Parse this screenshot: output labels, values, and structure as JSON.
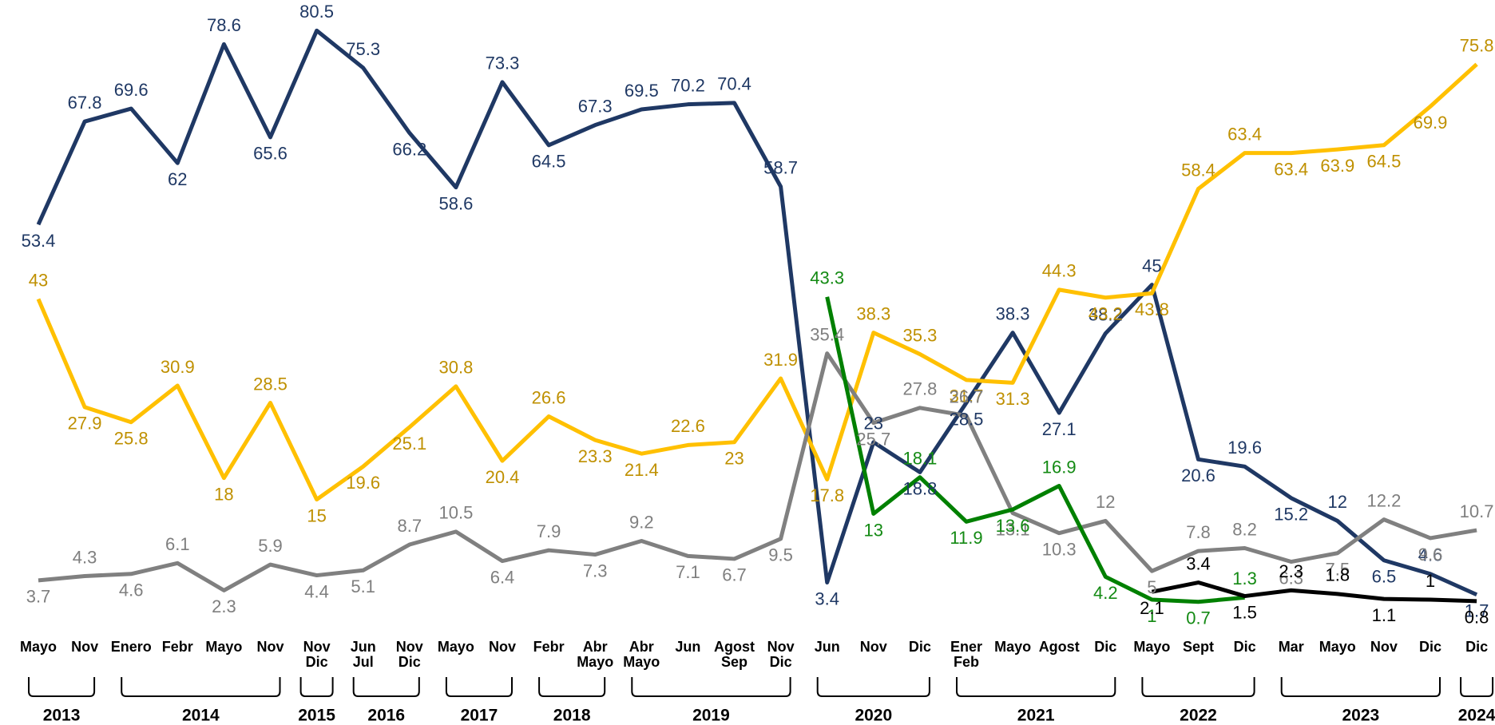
{
  "chart_data": {
    "type": "line",
    "categories": [
      "Mayo",
      "Nov",
      "Enero",
      "Febr",
      "Mayo",
      "Nov",
      "Nov\nDic",
      "Jun\nJul",
      "Nov\nDic",
      "Mayo",
      "Nov",
      "Febr",
      "Abr\nMayo",
      "Abr\nMayo",
      "Jun",
      "Agost\nSep",
      "Nov\nDic",
      "Jun",
      "Nov",
      "Dic",
      "Ener\nFeb",
      "Mayo",
      "Agost",
      "Dic",
      "Mayo",
      "Sept",
      "Dic",
      "Mar",
      "Mayo",
      "Nov",
      "Dic",
      "Dic"
    ],
    "x_groups": [
      {
        "label": "2013",
        "span": 2
      },
      {
        "label": "2014",
        "span": 4
      },
      {
        "label": "2015",
        "span": 1
      },
      {
        "label": "2016",
        "span": 2
      },
      {
        "label": "2017",
        "span": 2
      },
      {
        "label": "2018",
        "span": 2
      },
      {
        "label": "2019",
        "span": 4
      },
      {
        "label": "2020",
        "span": 3
      },
      {
        "label": "2021",
        "span": 4
      },
      {
        "label": "2022",
        "span": 3
      },
      {
        "label": "2023",
        "span": 4
      },
      {
        "label": "2024",
        "span": 1
      }
    ],
    "ylim": [
      0,
      85
    ],
    "series": [
      {
        "color": "#1f3864",
        "label_color": "#1f3864",
        "values": [
          53.4,
          67.8,
          69.6,
          62,
          78.6,
          65.6,
          80.5,
          75.3,
          66.2,
          58.6,
          73.3,
          64.5,
          67.3,
          69.5,
          70.2,
          70.4,
          58.7,
          3.4,
          23,
          18.8,
          28.5,
          38.3,
          27.1,
          38.2,
          45,
          20.6,
          19.6,
          15.2,
          12,
          6.5,
          4.6,
          1.7
        ]
      },
      {
        "color": "#ffc000",
        "label_color": "#bf9000",
        "values": [
          43,
          27.9,
          25.8,
          30.9,
          18,
          28.5,
          15,
          19.6,
          25.1,
          30.8,
          20.4,
          26.6,
          23.3,
          21.4,
          22.6,
          23,
          31.9,
          17.8,
          38.3,
          35.3,
          31.7,
          31.3,
          44.3,
          43.2,
          43.8,
          58.4,
          63.4,
          63.4,
          63.9,
          64.5,
          69.9,
          75.8
        ]
      },
      {
        "color": "#808080",
        "label_color": "#7f7f7f",
        "values": [
          3.7,
          4.3,
          4.6,
          6.1,
          2.3,
          5.9,
          4.4,
          5.1,
          8.7,
          10.5,
          6.4,
          7.9,
          7.3,
          9.2,
          7.1,
          6.7,
          9.5,
          35.4,
          25.7,
          27.8,
          26.7,
          13.1,
          10.3,
          12,
          5,
          7.8,
          8.2,
          6.3,
          7.5,
          12.2,
          9.6,
          10.7
        ]
      },
      {
        "color": "#008000",
        "label_color": "#138a13",
        "values": [
          null,
          null,
          null,
          null,
          null,
          null,
          null,
          null,
          null,
          null,
          null,
          null,
          null,
          null,
          null,
          null,
          null,
          43.3,
          13,
          18.1,
          11.9,
          13.6,
          16.9,
          4.2,
          1,
          0.7,
          1.3,
          null,
          null,
          null,
          null,
          null
        ]
      },
      {
        "color": "#000000",
        "label_color": "#000000",
        "values": [
          null,
          null,
          null,
          null,
          null,
          null,
          null,
          null,
          null,
          null,
          null,
          null,
          null,
          null,
          null,
          null,
          null,
          null,
          null,
          null,
          null,
          null,
          null,
          null,
          2.1,
          3.4,
          1.5,
          2.3,
          1.8,
          1.1,
          1,
          0.8
        ]
      }
    ]
  }
}
